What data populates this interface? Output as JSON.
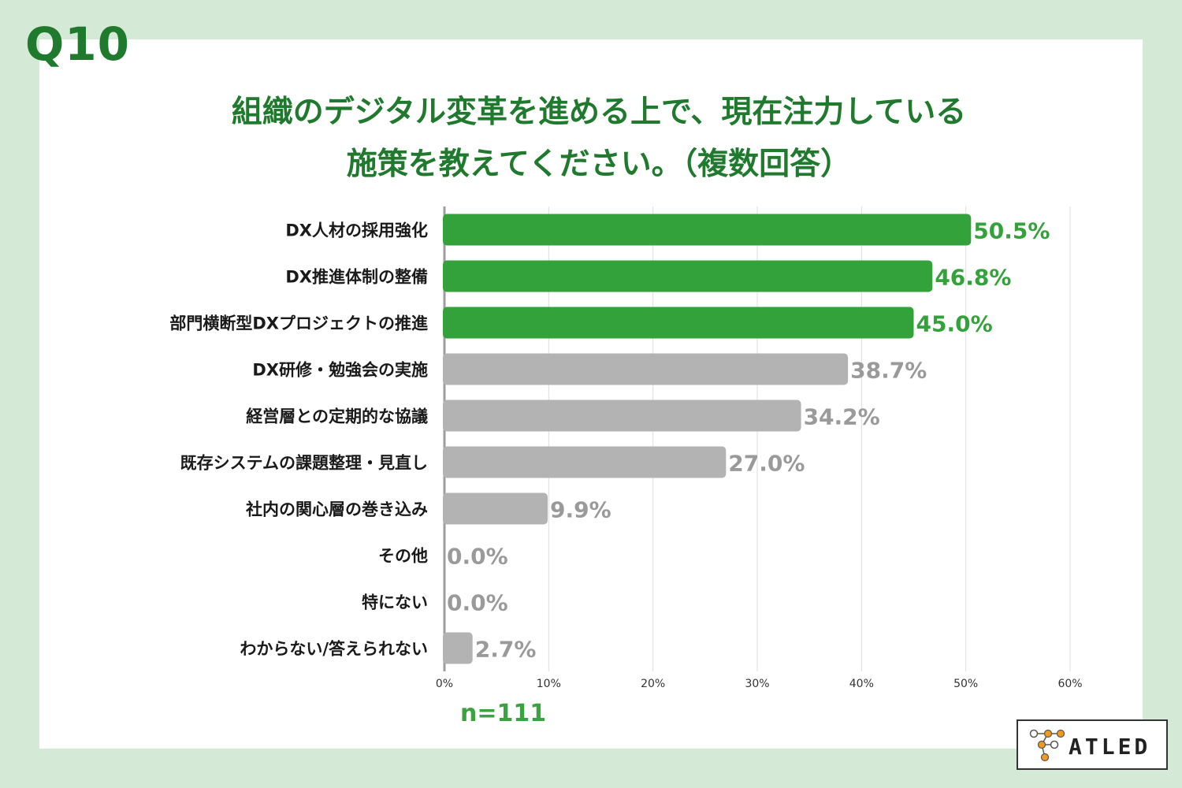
{
  "header": {
    "question_number": "Q10",
    "title_line1": "組織のデジタル変革を進める上で、現在注力している",
    "title_line2": "施策を教えてください。（複数回答）"
  },
  "colors": {
    "background": "#d4ead6",
    "title": "#1f7a2e",
    "highlight_bar": "#34a23b",
    "normal_bar": "#b3b3b3",
    "highlight_label": "#34a23b",
    "normal_label": "#9a9a9a"
  },
  "chart_data": {
    "type": "bar",
    "orientation": "horizontal",
    "categories": [
      "DX人材の採用強化",
      "DX推進体制の整備",
      "部門横断型DXプロジェクトの推進",
      "DX研修・勉強会の実施",
      "経営層との定期的な協議",
      "既存システムの課題整理・見直し",
      "社内の関心層の巻き込み",
      "その他",
      "特にない",
      "わからない/答えられない"
    ],
    "values": [
      50.5,
      46.8,
      45.0,
      38.7,
      34.2,
      27.0,
      9.9,
      0.0,
      0.0,
      2.7
    ],
    "value_labels": [
      "50.5%",
      "46.8%",
      "45.0%",
      "38.7%",
      "34.2%",
      "27.0%",
      "9.9%",
      "0.0%",
      "0.0%",
      "2.7%"
    ],
    "highlighted": [
      true,
      true,
      true,
      false,
      false,
      false,
      false,
      false,
      false,
      false
    ],
    "xlim": [
      0,
      60
    ],
    "xticks": [
      0,
      10,
      20,
      30,
      40,
      50,
      60
    ],
    "xtick_labels": [
      "0%",
      "10%",
      "20%",
      "30%",
      "40%",
      "50%",
      "60%"
    ],
    "grid": true
  },
  "footer": {
    "sample_size": "n=111"
  },
  "logo": {
    "text": "ATLED"
  }
}
